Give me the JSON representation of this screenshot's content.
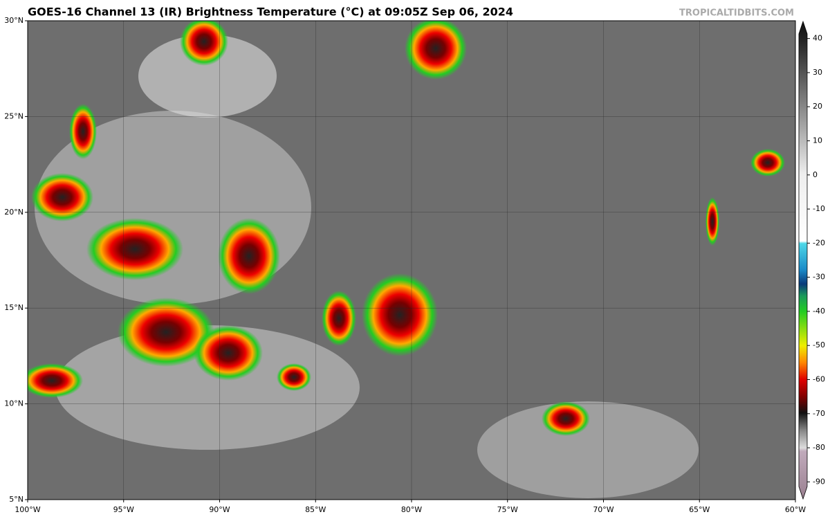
{
  "header": {
    "title": "GOES-16 Channel 13 (IR) Brightness Temperature (°C) at 09:05Z Sep 06, 2024",
    "watermark": "TROPICALTIDBITS.COM"
  },
  "map": {
    "lon_lim": [
      -100,
      -60
    ],
    "lat_lim": [
      5,
      30
    ],
    "lon_ticks": [
      {
        "value": -100,
        "label": "100°W"
      },
      {
        "value": -95,
        "label": "95°W"
      },
      {
        "value": -90,
        "label": "90°W"
      },
      {
        "value": -85,
        "label": "85°W"
      },
      {
        "value": -80,
        "label": "80°W"
      },
      {
        "value": -75,
        "label": "75°W"
      },
      {
        "value": -70,
        "label": "70°W"
      },
      {
        "value": -65,
        "label": "65°W"
      },
      {
        "value": -60,
        "label": "60°W"
      }
    ],
    "lat_ticks": [
      {
        "value": 5,
        "label": "5°N"
      },
      {
        "value": 10,
        "label": "10°N"
      },
      {
        "value": 15,
        "label": "15°N"
      },
      {
        "value": 20,
        "label": "20°N"
      },
      {
        "value": 25,
        "label": "25°N"
      },
      {
        "value": 30,
        "label": "30°N"
      }
    ],
    "grid": true
  },
  "colorbar": {
    "lim": [
      -95,
      45
    ],
    "ticks": [
      40,
      30,
      20,
      10,
      0,
      -10,
      -20,
      -30,
      -40,
      -50,
      -60,
      -70,
      -80,
      -90
    ]
  }
}
